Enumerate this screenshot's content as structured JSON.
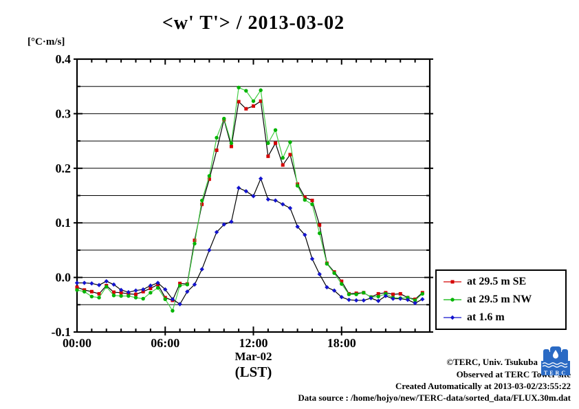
{
  "title": "<w' T'> / 2013-03-02",
  "y_axis_unit": "[°C·m/s]",
  "x_axis": {
    "tick_labels": [
      "00:00",
      "06:00",
      "12:00",
      "18:00"
    ],
    "sub_label": "Mar-02",
    "sub_label2": "(LST)"
  },
  "y_axis": {
    "tick_labels": [
      "0.4",
      "0.3",
      "0.2",
      "0.1",
      "0.0",
      "-0.1"
    ],
    "tick_values": [
      0.4,
      0.3,
      0.2,
      0.1,
      0.0,
      -0.1
    ]
  },
  "legend": {
    "entries": [
      "at 29.5 m SE",
      "at 29.5 m NW",
      "at 1.6 m"
    ]
  },
  "footer": {
    "copyright": "©TERC, Univ. Tsukuba",
    "observed": "Observed at TERC Tower site",
    "created": "Created Automatically at 2013-03-02/23:55:22",
    "data_source": "Data source : /home/hojyo/new/TERC-data/sorted_data/FLUX.30m.dat",
    "logo_text": "TERC"
  },
  "colors": {
    "series_se_marker": "#d40000",
    "series_nw_marker": "#00b400",
    "series_nw_line": "#44cc44",
    "series_low_marker": "#1414cd",
    "black_line": "#000000",
    "logo_blue": "#2a6ac4"
  },
  "chart_data": {
    "type": "line",
    "title": "<w' T'> / 2013-03-02",
    "xlabel": "Mar-02 (LST)",
    "ylabel": "[°C·m/s]",
    "ylim": [
      -0.1,
      0.4
    ],
    "xlim_hours": [
      0,
      24
    ],
    "x_major_tick_hours": [
      0,
      6,
      12,
      18
    ],
    "x_minor_tick_step_hours": 1,
    "y_grid_step": 0.05,
    "grid": "horizontal-only",
    "legend_position": "outside-right-bottom",
    "x_hours": [
      0,
      0.5,
      1,
      1.5,
      2,
      2.5,
      3,
      3.5,
      4,
      4.5,
      5,
      5.5,
      6,
      6.5,
      7,
      7.5,
      8,
      8.5,
      9,
      9.5,
      10,
      10.5,
      11,
      11.5,
      12,
      12.5,
      13,
      13.5,
      14,
      14.5,
      15,
      15.5,
      16,
      16.5,
      17,
      17.5,
      18,
      18.5,
      19,
      19.5,
      20,
      20.5,
      21,
      21.5,
      22,
      22.5,
      23,
      23.5
    ],
    "series": [
      {
        "name": "at 29.5 m SE",
        "marker": "square",
        "marker_color": "#d40000",
        "line_color": "#000000",
        "values": [
          -0.018,
          -0.023,
          -0.026,
          -0.03,
          -0.015,
          -0.027,
          -0.028,
          -0.03,
          -0.031,
          -0.026,
          -0.02,
          -0.013,
          -0.037,
          -0.042,
          -0.011,
          -0.012,
          0.068,
          0.134,
          0.18,
          0.233,
          0.289,
          0.24,
          0.322,
          0.309,
          0.314,
          0.323,
          0.222,
          0.246,
          0.206,
          0.225,
          0.171,
          0.147,
          0.141,
          0.096,
          0.026,
          0.01,
          -0.007,
          -0.03,
          -0.029,
          -0.028,
          -0.036,
          -0.03,
          -0.028,
          -0.031,
          -0.03,
          -0.037,
          -0.04,
          -0.028
        ]
      },
      {
        "name": "at 29.5 m NW",
        "marker": "circle",
        "marker_color": "#00b400",
        "line_color": "#44cc44",
        "values": [
          -0.023,
          -0.026,
          -0.035,
          -0.037,
          -0.017,
          -0.033,
          -0.034,
          -0.034,
          -0.037,
          -0.039,
          -0.028,
          -0.019,
          -0.04,
          -0.061,
          -0.015,
          -0.013,
          0.062,
          0.141,
          0.186,
          0.256,
          0.291,
          0.246,
          0.348,
          0.342,
          0.323,
          0.343,
          0.246,
          0.27,
          0.219,
          0.248,
          0.168,
          0.142,
          0.134,
          0.081,
          0.025,
          0.008,
          -0.012,
          -0.031,
          -0.031,
          -0.028,
          -0.036,
          -0.035,
          -0.03,
          -0.037,
          -0.038,
          -0.037,
          -0.042,
          -0.03
        ]
      },
      {
        "name": "at 1.6 m",
        "marker": "diamond",
        "marker_color": "#1414cd",
        "line_color": "#000000",
        "values": [
          -0.01,
          -0.01,
          -0.011,
          -0.014,
          -0.007,
          -0.013,
          -0.023,
          -0.027,
          -0.024,
          -0.022,
          -0.015,
          -0.01,
          -0.022,
          -0.04,
          -0.049,
          -0.026,
          -0.013,
          0.015,
          0.05,
          0.083,
          0.097,
          0.102,
          0.164,
          0.158,
          0.149,
          0.181,
          0.143,
          0.141,
          0.134,
          0.127,
          0.093,
          0.078,
          0.034,
          0.006,
          -0.018,
          -0.024,
          -0.036,
          -0.041,
          -0.042,
          -0.042,
          -0.038,
          -0.043,
          -0.034,
          -0.039,
          -0.039,
          -0.041,
          -0.047,
          -0.04
        ]
      }
    ]
  }
}
